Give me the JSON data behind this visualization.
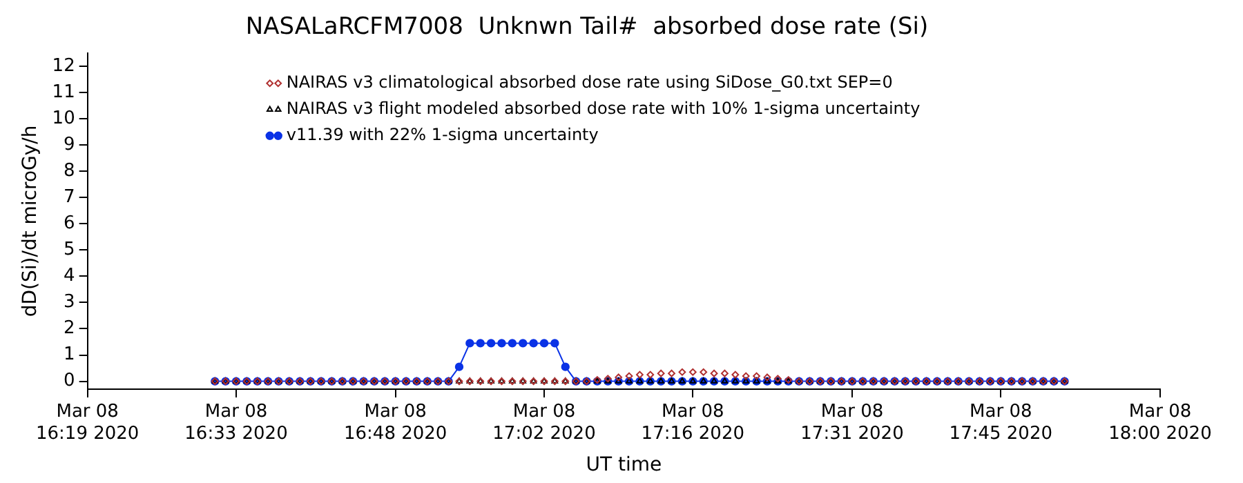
{
  "chart_data": {
    "type": "line",
    "title": "NASALaRCFM7008  Unknwn Tail#  absorbed dose rate (Si)",
    "xlabel": "UT time",
    "ylabel": "dD(Si)/dt microGy/h",
    "x": [
      "2020-03-08T16:31",
      "2020-03-08T16:32",
      "2020-03-08T16:33",
      "2020-03-08T16:34",
      "2020-03-08T16:35",
      "2020-03-08T16:36",
      "2020-03-08T16:37",
      "2020-03-08T16:38",
      "2020-03-08T16:39",
      "2020-03-08T16:40",
      "2020-03-08T16:41",
      "2020-03-08T16:42",
      "2020-03-08T16:43",
      "2020-03-08T16:44",
      "2020-03-08T16:45",
      "2020-03-08T16:46",
      "2020-03-08T16:47",
      "2020-03-08T16:48",
      "2020-03-08T16:49",
      "2020-03-08T16:50",
      "2020-03-08T16:51",
      "2020-03-08T16:52",
      "2020-03-08T16:53",
      "2020-03-08T16:54",
      "2020-03-08T16:55",
      "2020-03-08T16:56",
      "2020-03-08T16:57",
      "2020-03-08T16:58",
      "2020-03-08T16:59",
      "2020-03-08T17:00",
      "2020-03-08T17:01",
      "2020-03-08T17:02",
      "2020-03-08T17:03",
      "2020-03-08T17:04",
      "2020-03-08T17:05",
      "2020-03-08T17:06",
      "2020-03-08T17:07",
      "2020-03-08T17:08",
      "2020-03-08T17:09",
      "2020-03-08T17:10",
      "2020-03-08T17:11",
      "2020-03-08T17:12",
      "2020-03-08T17:13",
      "2020-03-08T17:14",
      "2020-03-08T17:15",
      "2020-03-08T17:16",
      "2020-03-08T17:17",
      "2020-03-08T17:18",
      "2020-03-08T17:19",
      "2020-03-08T17:20",
      "2020-03-08T17:21",
      "2020-03-08T17:22",
      "2020-03-08T17:23",
      "2020-03-08T17:24",
      "2020-03-08T17:25",
      "2020-03-08T17:26",
      "2020-03-08T17:27",
      "2020-03-08T17:28",
      "2020-03-08T17:29",
      "2020-03-08T17:30",
      "2020-03-08T17:31",
      "2020-03-08T17:32",
      "2020-03-08T17:33",
      "2020-03-08T17:34",
      "2020-03-08T17:35",
      "2020-03-08T17:36",
      "2020-03-08T17:37",
      "2020-03-08T17:38",
      "2020-03-08T17:39",
      "2020-03-08T17:40",
      "2020-03-08T17:41",
      "2020-03-08T17:42",
      "2020-03-08T17:43",
      "2020-03-08T17:44",
      "2020-03-08T17:45",
      "2020-03-08T17:46",
      "2020-03-08T17:47",
      "2020-03-08T17:48",
      "2020-03-08T17:49",
      "2020-03-08T17:50",
      "2020-03-08T17:51"
    ],
    "series": [
      {
        "name": "NAIRAS v3 climatological absorbed dose rate using SiDose_G0.txt SEP=0",
        "type": "scatter",
        "marker": "diamond",
        "color": "#b03030",
        "values": [
          0,
          0,
          0,
          0,
          0,
          0,
          0,
          0,
          0,
          0,
          0,
          0,
          0,
          0,
          0,
          0,
          0,
          0,
          0,
          0,
          0,
          0,
          0,
          0,
          0,
          0,
          0,
          0,
          0,
          0,
          0,
          0,
          0,
          0,
          0,
          0,
          0.05,
          0.1,
          0.15,
          0.2,
          0.25,
          0.25,
          0.3,
          0.3,
          0.35,
          0.35,
          0.35,
          0.3,
          0.3,
          0.25,
          0.2,
          0.2,
          0.15,
          0.1,
          0.05,
          0,
          0,
          0,
          0,
          0,
          0,
          0,
          0,
          0,
          0,
          0,
          0,
          0,
          0,
          0,
          0,
          0,
          0,
          0,
          0,
          0,
          0,
          0,
          0,
          0,
          0
        ]
      },
      {
        "name": "NAIRAS v3 flight modeled absorbed dose rate with 10% 1-sigma uncertainty",
        "type": "scatter",
        "marker": "triangle",
        "color": "#000000",
        "values": [
          0,
          0,
          0,
          0,
          0,
          0,
          0,
          0,
          0,
          0,
          0,
          0,
          0,
          0,
          0,
          0,
          0,
          0,
          0,
          0,
          0,
          0,
          0,
          0,
          0,
          0,
          0,
          0,
          0,
          0,
          0,
          0,
          0,
          0,
          0,
          0,
          0,
          0,
          0,
          0,
          0,
          0,
          0,
          0,
          0,
          0,
          0,
          0,
          0,
          0,
          0,
          0,
          0,
          0,
          0,
          0,
          0,
          0,
          0,
          0,
          0,
          0,
          0,
          0,
          0,
          0,
          0,
          0,
          0,
          0,
          0,
          0,
          0,
          0,
          0,
          0,
          0,
          0,
          0,
          0,
          0
        ]
      },
      {
        "name": "v11.39 with 22% 1-sigma uncertainty",
        "marker": "circle",
        "color": "#0a32e6",
        "values": [
          0,
          0,
          0,
          0,
          0,
          0,
          0,
          0,
          0,
          0,
          0,
          0,
          0,
          0,
          0,
          0,
          0,
          0,
          0,
          0,
          0,
          0,
          0,
          0.55,
          1.45,
          1.45,
          1.45,
          1.45,
          1.45,
          1.45,
          1.45,
          1.45,
          1.45,
          0.55,
          0,
          0,
          0,
          0,
          0,
          0,
          0,
          0,
          0,
          0,
          0,
          0,
          0,
          0,
          0,
          0,
          0,
          0,
          0,
          0,
          0,
          0,
          0,
          0,
          0,
          0,
          0,
          0,
          0,
          0,
          0,
          0,
          0,
          0,
          0,
          0,
          0,
          0,
          0,
          0,
          0,
          0,
          0,
          0,
          0,
          0,
          0
        ]
      }
    ],
    "xlim": [
      "2020-03-08T16:19",
      "2020-03-08T18:00"
    ],
    "xticks": [
      {
        "value": "2020-03-08T16:19",
        "label": "Mar 08\n16:19 2020"
      },
      {
        "value": "2020-03-08T16:33",
        "label": "Mar 08\n16:33 2020"
      },
      {
        "value": "2020-03-08T16:48",
        "label": "Mar 08\n16:48 2020"
      },
      {
        "value": "2020-03-08T17:02",
        "label": "Mar 08\n17:02 2020"
      },
      {
        "value": "2020-03-08T17:16",
        "label": "Mar 08\n17:16 2020"
      },
      {
        "value": "2020-03-08T17:31",
        "label": "Mar 08\n17:31 2020"
      },
      {
        "value": "2020-03-08T17:45",
        "label": "Mar 08\n17:45 2020"
      },
      {
        "value": "2020-03-08T18:00",
        "label": "Mar 08\n18:00 2020"
      }
    ],
    "ylim": [
      -0.3,
      12.5
    ],
    "yticks": [
      0,
      1,
      2,
      3,
      4,
      5,
      6,
      7,
      8,
      9,
      10,
      11,
      12
    ],
    "grid": false,
    "legend": "top"
  }
}
